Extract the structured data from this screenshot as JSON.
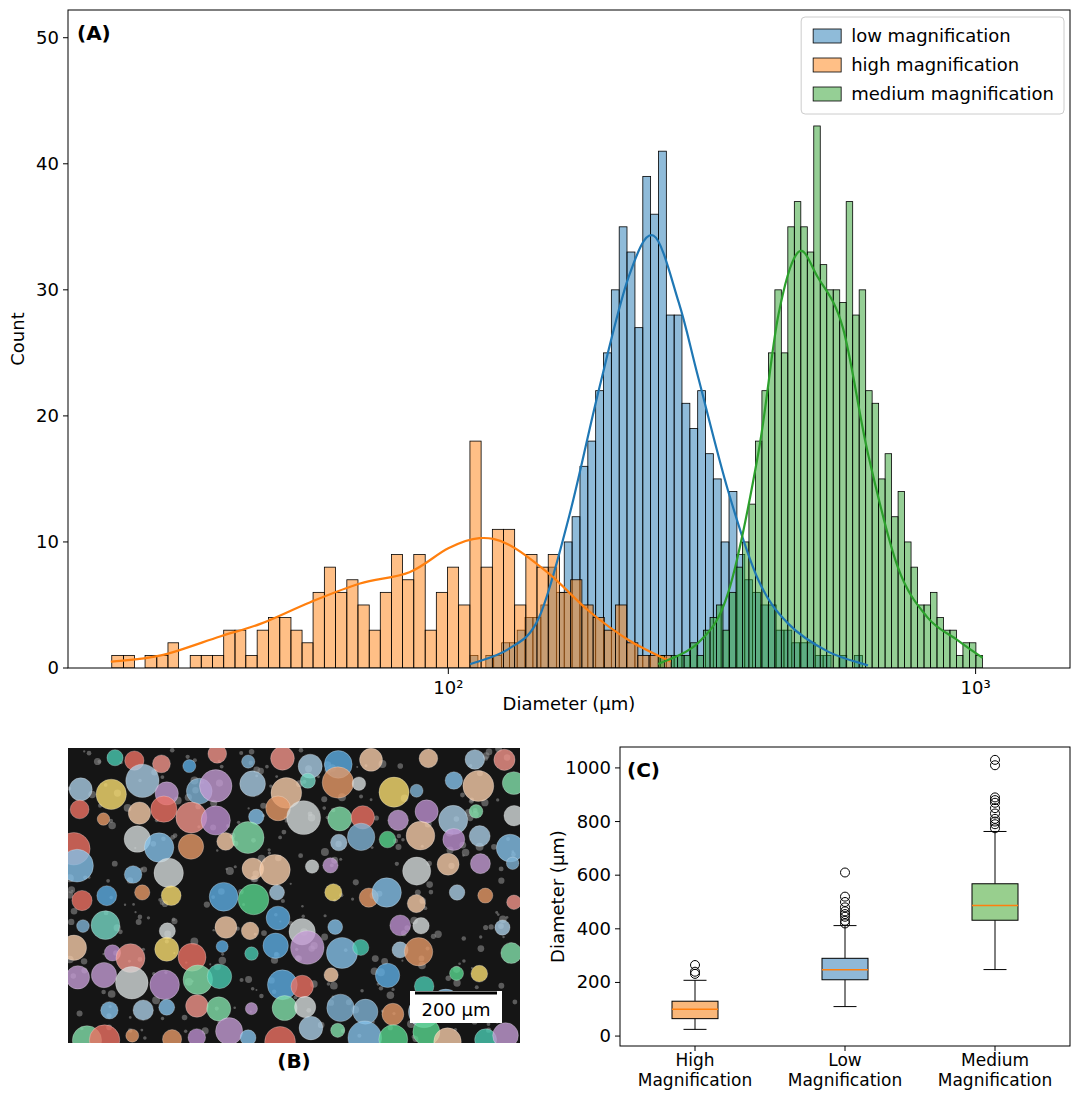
{
  "chart_data": [
    {
      "type": "histogram",
      "panel_label": "(A)",
      "xlabel": "Diameter (μm)",
      "ylabel": "Count",
      "log": "x",
      "xlim": [
        19,
        1510
      ],
      "ylim": [
        0,
        52.2
      ],
      "xticks": [
        {
          "value": 100,
          "label": "10²"
        },
        {
          "value": 1000,
          "label": "10³"
        }
      ],
      "yticks": [
        0,
        10,
        20,
        30,
        40,
        50
      ],
      "grid": false,
      "legend": "upper right",
      "series": [
        {
          "name": "low magnification",
          "color": "#1f77b4",
          "bins": [
            110.0,
            113.8,
            117.8,
            121.9,
            126.2,
            130.6,
            135.1,
            139.8,
            144.7,
            149.8,
            155.0,
            160.3,
            165.9,
            171.7,
            177.7,
            183.9,
            190.3,
            196.9,
            203.8,
            210.9,
            218.2,
            225.9,
            233.8,
            241.9,
            250.3,
            259.1,
            268.1,
            277.4,
            287.1,
            297.1,
            307.5,
            318.1,
            329.2,
            340.7,
            352.6,
            364.9,
            377.6,
            390.8,
            404.4,
            418.5,
            433.1,
            448.1,
            463.7,
            479.9,
            496.6,
            513.9,
            531.8,
            550.4,
            569.6,
            589.4,
            610.0
          ],
          "values": [
            1,
            0,
            1,
            1,
            2,
            2,
            3,
            4,
            4,
            5,
            8,
            6,
            10,
            12,
            16,
            18,
            22,
            25,
            30,
            35,
            33,
            27,
            39,
            36,
            41,
            28,
            28,
            21,
            19,
            22,
            17,
            15,
            10,
            14,
            9,
            7,
            6,
            5,
            5,
            3,
            3,
            2,
            2,
            2,
            1,
            1,
            0,
            1,
            0,
            1
          ],
          "kde": {
            "x": [
              110,
              130,
              148.6,
              169.4,
              192.8,
              219.7,
              245,
              273.5,
              298,
              339.6,
              387,
              441.6,
              525,
              625
            ],
            "y": [
              0.3,
              1.5,
              4,
              12,
              22,
              31,
              34.3,
              29,
              23,
              14,
              7,
              3.5,
              1.3,
              0.2
            ]
          }
        },
        {
          "name": "high magnification",
          "color": "#ff7f0e",
          "bins": [
            23.0,
            24.2,
            25.4,
            26.6,
            28.0,
            29.4,
            30.8,
            32.4,
            34.0,
            35.7,
            37.5,
            39.4,
            41.3,
            43.4,
            45.6,
            47.9,
            50.3,
            52.8,
            55.4,
            58.2,
            61.1,
            64.2,
            67.4,
            70.8,
            74.3,
            78.0,
            81.9,
            86.0,
            90.4,
            94.9,
            99.6,
            104.6,
            109.9,
            115.4,
            121.2,
            127.2,
            133.6,
            140.3,
            147.3,
            154.7,
            162.5,
            170.6,
            179.2,
            188.2,
            197.6,
            207.5,
            217.9,
            228.8,
            240.3,
            252.3,
            265.0
          ],
          "values": [
            1,
            1,
            0,
            1,
            1,
            2,
            0,
            1,
            1,
            1,
            3,
            3,
            1,
            3,
            4,
            4,
            3,
            2,
            6,
            8,
            6,
            7,
            5,
            3,
            6,
            9,
            7,
            9,
            3,
            6,
            8,
            5,
            18,
            8,
            11,
            11,
            5,
            9,
            8,
            9,
            6,
            7,
            5,
            4,
            3,
            5,
            2,
            1,
            1,
            1
          ],
          "kde": {
            "x": [
              22.9,
              28.5,
              36.9,
              44,
              54.6,
              68,
              84.4,
              100,
              114.5,
              130,
              155,
              185,
              220,
              264
            ],
            "y": [
              0.5,
              1,
              2.5,
              3.5,
              5.2,
              6.7,
              7.6,
              9.5,
              10.3,
              9.8,
              7.5,
              4.5,
              2.2,
              0.5
            ]
          }
        },
        {
          "name": "medium magnification",
          "color": "#2ca02c",
          "bins": [
            250.0,
            257.2,
            264.6,
            272.2,
            280.0,
            288.0,
            296.3,
            304.8,
            313.6,
            322.6,
            331.8,
            341.4,
            351.2,
            361.3,
            371.6,
            382.3,
            393.3,
            404.6,
            416.2,
            428.1,
            440.4,
            453.1,
            466.1,
            479.5,
            493.2,
            507.4,
            522.0,
            537.0,
            552.4,
            568.3,
            584.6,
            601.4,
            618.7,
            636.4,
            654.7,
            673.5,
            692.9,
            712.8,
            733.2,
            754.3,
            776.0,
            798.3,
            821.2,
            844.8,
            869.0,
            894.0,
            919.7,
            946.1,
            973.3,
            1001.2,
            1030.0
          ],
          "values": [
            1,
            0,
            1,
            1,
            1,
            2,
            1,
            3,
            4,
            5,
            3,
            6,
            8,
            10,
            13,
            18,
            22,
            25,
            30,
            25,
            35,
            37,
            35,
            33,
            43,
            32,
            30,
            30,
            29,
            37,
            28,
            30,
            22,
            21,
            15,
            17,
            12,
            14,
            10,
            8,
            5,
            5,
            6,
            4,
            3,
            3,
            1,
            2,
            2,
            1
          ],
          "kde": {
            "x": [
              250,
              298,
              339.6,
              387,
              422.6,
              461,
              502,
              560,
              625,
              712,
              811,
              925,
              1031
            ],
            "y": [
              0.3,
              2,
              6,
              17,
              28,
              33,
              31,
              27,
              17,
              8,
              4,
              2.2,
              0.8
            ]
          }
        }
      ]
    },
    {
      "type": "box",
      "panel_label": "(C)",
      "ylabel": "Diameter (μm)",
      "categories": [
        "High Magnification",
        "Low Magnification",
        "Medium Magnification"
      ],
      "colors": [
        "#f9b77a",
        "#8fb8d8",
        "#98cf8e"
      ],
      "ylim": [
        -37,
        1078
      ],
      "yticks": [
        0,
        200,
        400,
        600,
        800,
        1000
      ],
      "grid": false,
      "boxes": {
        "whisker_low": [
          25,
          110,
          248
        ],
        "q1": [
          65,
          210,
          432
        ],
        "median": [
          100,
          247,
          487
        ],
        "q3": [
          130,
          290,
          568
        ],
        "whisker_high": [
          208,
          412,
          763
        ],
        "outliers": [
          [
            232,
            240,
            265
          ],
          [
            420,
            430,
            445,
            455,
            465,
            480,
            500,
            520,
            610
          ],
          [
            775,
            790,
            800,
            810,
            830,
            850,
            870,
            880,
            890,
            1010,
            1030
          ]
        ]
      }
    }
  ],
  "image_panel": {
    "panel_label": "(B)",
    "scale_bar": "200 µm"
  }
}
